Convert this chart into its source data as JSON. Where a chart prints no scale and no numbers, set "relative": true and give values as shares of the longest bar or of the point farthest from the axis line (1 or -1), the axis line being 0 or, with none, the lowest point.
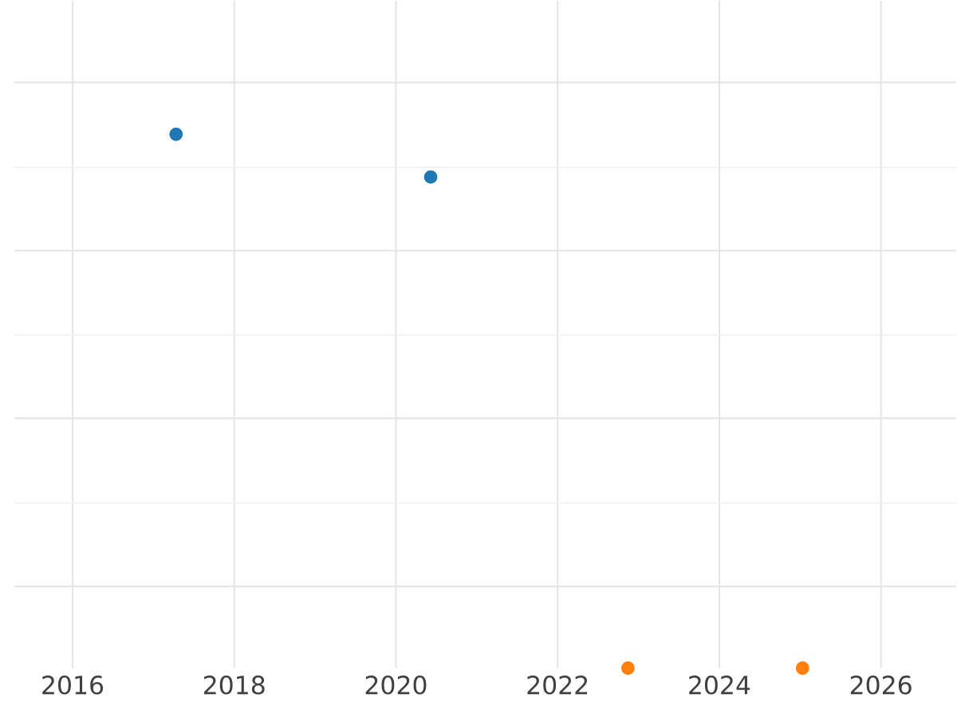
{
  "chart_data": {
    "type": "scatter",
    "relative": true,
    "marker": "circle",
    "grid": true,
    "xlim": [
      2015.28,
      2026.93
    ],
    "xticks": [
      2016,
      2018,
      2020,
      2022,
      2024,
      2026
    ],
    "tick_labels": "x",
    "series": [
      {
        "color": "#1f77b4",
        "x": [
          2017.28,
          2020.43
        ],
        "values": [
          1,
          0.92
        ]
      },
      {
        "color": "#ff7f0e",
        "x": [
          2022.87,
          2025.03
        ],
        "values": [
          0,
          0
        ]
      }
    ]
  }
}
